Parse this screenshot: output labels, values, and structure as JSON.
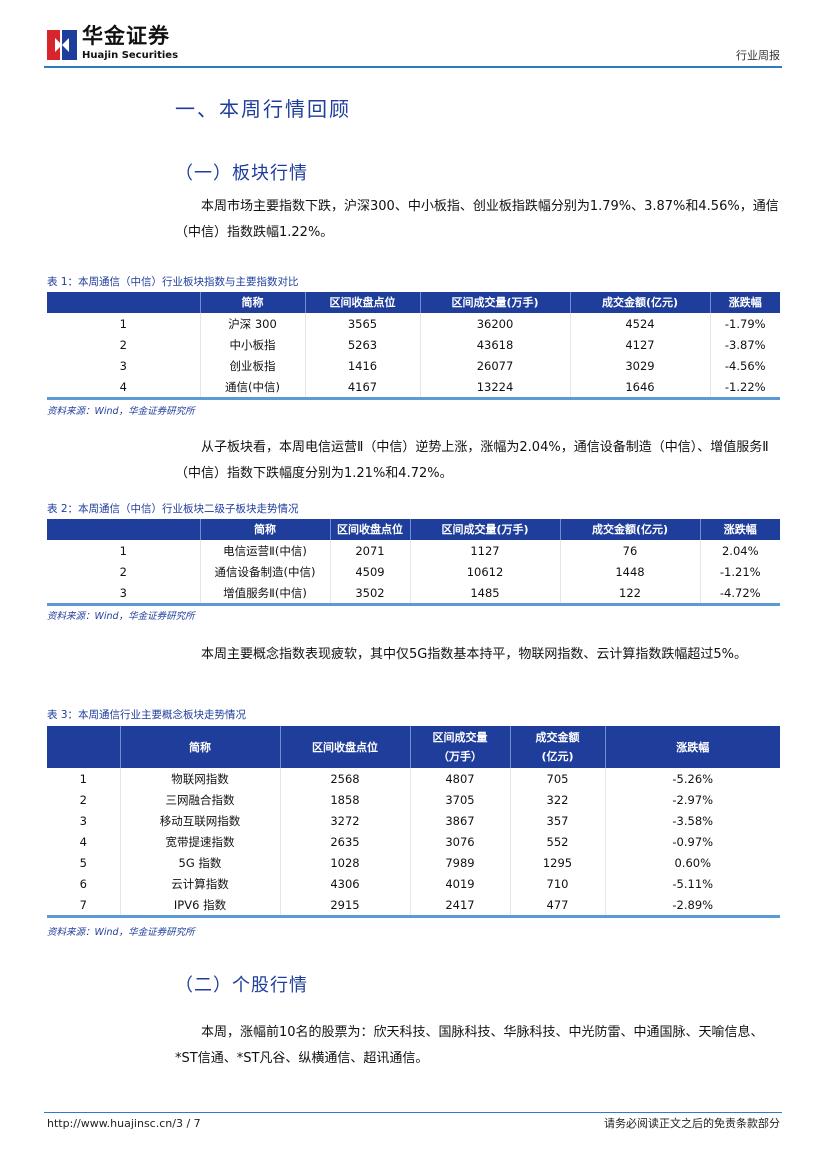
{
  "header": {
    "logo_cn": "华金证券",
    "logo_en": "Huajin Securities",
    "doc_type": "行业周报",
    "brand_red": "#d7262b",
    "brand_blue": "#1f3e9c"
  },
  "section_title": "一、本周行情回顾",
  "sub1": "（一）板块行情",
  "para1": "本周市场主要指数下跌，沪深300、中小板指、创业板指跌幅分别为1.79%、3.87%和4.56%，通信（中信）指数跌幅1.22%。",
  "table1": {
    "caption": "表 1：本周通信（中信）行业板块指数与主要指数对比",
    "headers": [
      "",
      "简称",
      "区间收盘点位",
      "区间成交量(万手)",
      "成交金额(亿元)",
      "涨跌幅"
    ],
    "rows": [
      [
        "1",
        "沪深 300",
        "3565",
        "36200",
        "4524",
        "-1.79%"
      ],
      [
        "2",
        "中小板指",
        "5263",
        "43618",
        "4127",
        "-3.87%"
      ],
      [
        "3",
        "创业板指",
        "1416",
        "26077",
        "3029",
        "-4.56%"
      ],
      [
        "4",
        "通信(中信)",
        "4167",
        "13224",
        "1646",
        "-1.22%"
      ]
    ],
    "source": "资料来源：Wind，华金证券研究所"
  },
  "para2": "从子板块看，本周电信运营Ⅱ（中信）逆势上涨，涨幅为2.04%，通信设备制造（中信）、增值服务Ⅱ（中信）指数下跌幅度分别为1.21%和4.72%。",
  "table2": {
    "caption": "表 2：本周通信（中信）行业板块二级子板块走势情况",
    "headers": [
      "",
      "简称",
      "区间收盘点位",
      "区间成交量(万手)",
      "成交金额(亿元)",
      "涨跌幅"
    ],
    "rows": [
      [
        "1",
        "电信运营Ⅱ(中信)",
        "2071",
        "1127",
        "76",
        "2.04%"
      ],
      [
        "2",
        "通信设备制造(中信)",
        "4509",
        "10612",
        "1448",
        "-1.21%"
      ],
      [
        "3",
        "增值服务Ⅱ(中信)",
        "3502",
        "1485",
        "122",
        "-4.72%"
      ]
    ],
    "source": "资料来源：Wind，华金证券研究所"
  },
  "para3": "本周主要概念指数表现疲软，其中仅5G指数基本持平，物联网指数、云计算指数跌幅超过5%。",
  "table3": {
    "caption": "表 3：本周通信行业主要概念板块走势情况",
    "headers": [
      "",
      "简称",
      "区间收盘点位",
      "区间成交量\n（万手）",
      "成交金额\n(亿元)",
      "涨跌幅"
    ],
    "rows": [
      [
        "1",
        "物联网指数",
        "2568",
        "4807",
        "705",
        "-5.26%"
      ],
      [
        "2",
        "三网融合指数",
        "1858",
        "3705",
        "322",
        "-2.97%"
      ],
      [
        "3",
        "移动互联网指数",
        "3272",
        "3867",
        "357",
        "-3.58%"
      ],
      [
        "4",
        "宽带提速指数",
        "2635",
        "3076",
        "552",
        "-0.97%"
      ],
      [
        "5",
        "5G 指数",
        "1028",
        "7989",
        "1295",
        "0.60%"
      ],
      [
        "6",
        "云计算指数",
        "4306",
        "4019",
        "710",
        "-5.11%"
      ],
      [
        "7",
        "IPV6 指数",
        "2915",
        "2417",
        "477",
        "-2.89%"
      ]
    ],
    "source": "资料来源：Wind，华金证券研究所"
  },
  "sub2": "（二）个股行情",
  "para4": "本周，涨幅前10名的股票为：欣天科技、国脉科技、华脉科技、中光防雷、中通国脉、天喻信息、*ST信通、*ST凡谷、纵横通信、超讯通信。",
  "footer": {
    "url": "http://www.huajinsc.cn/3 / 7",
    "note": "请务必阅读正文之后的免责条款部分"
  }
}
